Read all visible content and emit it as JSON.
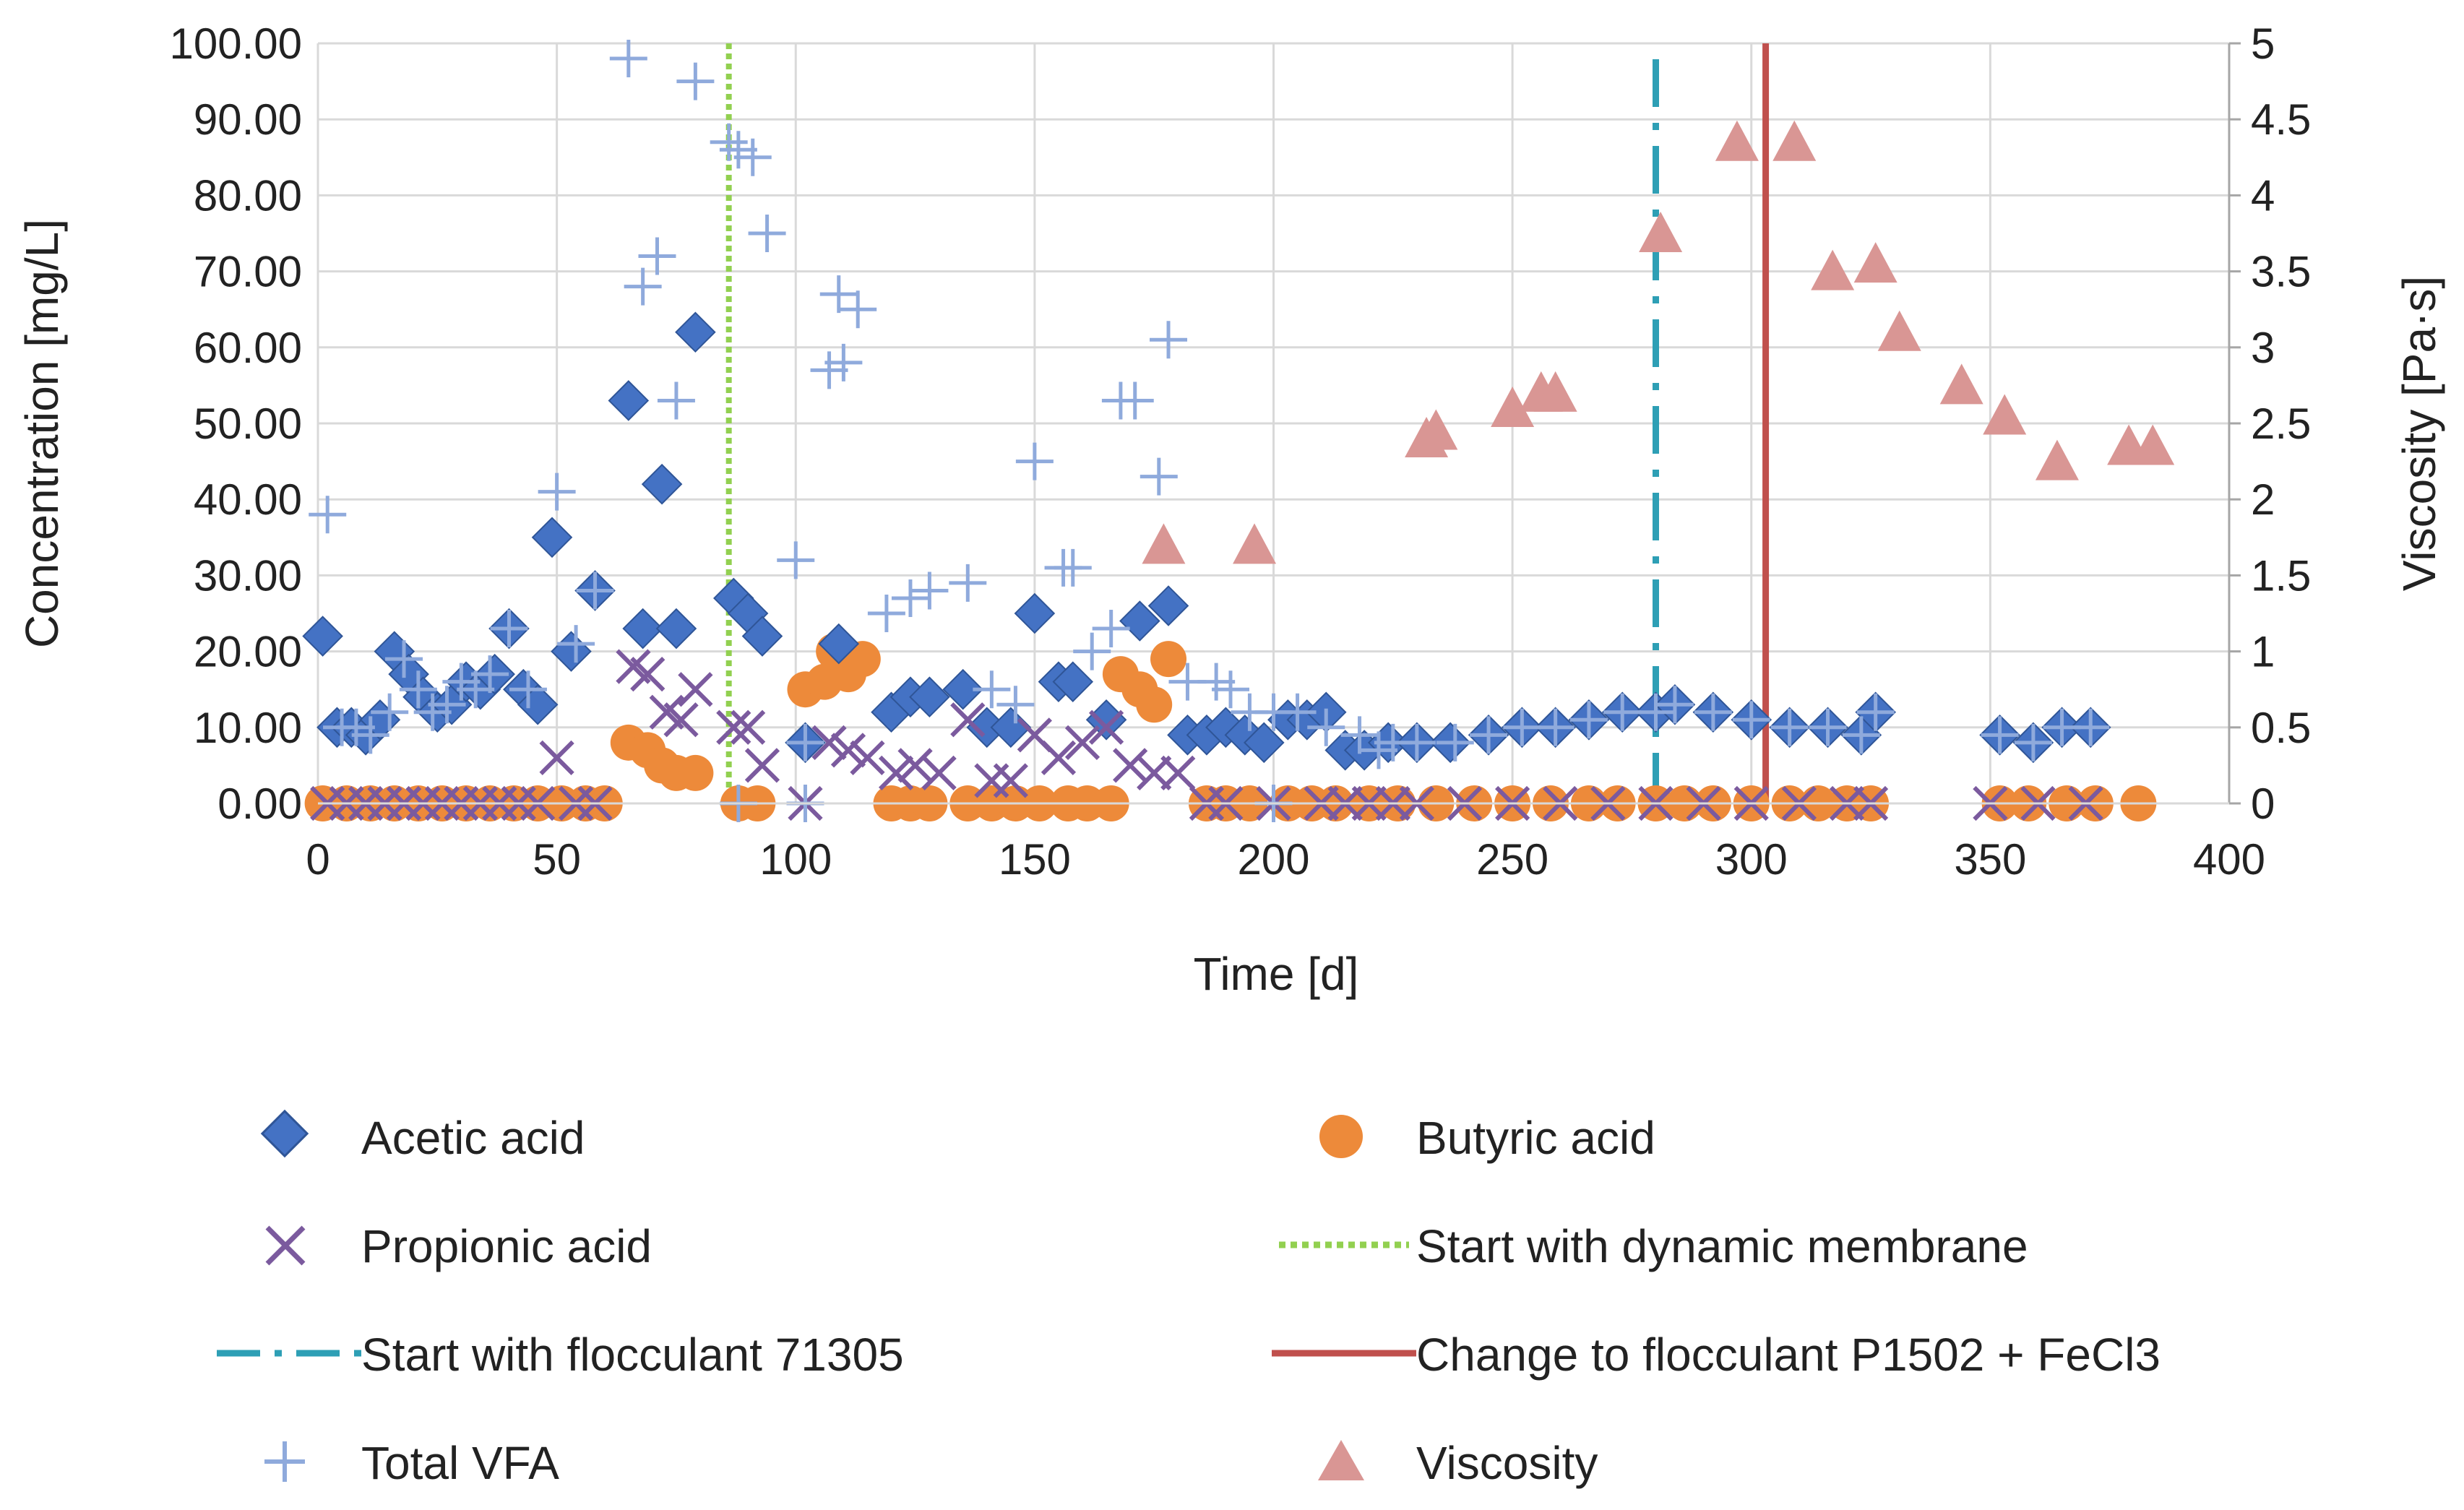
{
  "chart_data": {
    "type": "scatter",
    "xlabel": "Time [d]",
    "ylabel": "Concentration [mg/L]",
    "y2label": "Viscosity [Pa·s]",
    "xlim": [
      0,
      400
    ],
    "ylim": [
      0,
      100
    ],
    "y2lim": [
      0,
      5
    ],
    "x_ticks": [
      "0",
      "50",
      "100",
      "150",
      "200",
      "250",
      "300",
      "350",
      "400"
    ],
    "y_ticks": [
      "0.00",
      "10.00",
      "20.00",
      "30.00",
      "40.00",
      "50.00",
      "60.00",
      "70.00",
      "80.00",
      "90.00",
      "100.00"
    ],
    "y2_ticks": [
      "0",
      "0.5",
      "1",
      "1.5",
      "2",
      "2.5",
      "3",
      "3.5",
      "4",
      "4.5",
      "5"
    ],
    "grid": true,
    "legend_position": "bottom",
    "series": [
      {
        "name": "Acetic acid",
        "axis": "left",
        "marker": "diamond",
        "color": "#4472C4",
        "points": [
          [
            1,
            22
          ],
          [
            4,
            10
          ],
          [
            7,
            10
          ],
          [
            10,
            9
          ],
          [
            13,
            11
          ],
          [
            16,
            20
          ],
          [
            19,
            17
          ],
          [
            22,
            14
          ],
          [
            25,
            12
          ],
          [
            28,
            13
          ],
          [
            31,
            16
          ],
          [
            34,
            15
          ],
          [
            37,
            17
          ],
          [
            40,
            23
          ],
          [
            43,
            15
          ],
          [
            46,
            13
          ],
          [
            49,
            35
          ],
          [
            53,
            20
          ],
          [
            58,
            28
          ],
          [
            65,
            53
          ],
          [
            68,
            23
          ],
          [
            72,
            42
          ],
          [
            75,
            23
          ],
          [
            79,
            62
          ],
          [
            87,
            27
          ],
          [
            90,
            25
          ],
          [
            93,
            22
          ],
          [
            102,
            8
          ],
          [
            109,
            21
          ],
          [
            120,
            12
          ],
          [
            124,
            14
          ],
          [
            128,
            14
          ],
          [
            135,
            15
          ],
          [
            140,
            10
          ],
          [
            145,
            10
          ],
          [
            150,
            25
          ],
          [
            155,
            16
          ],
          [
            158,
            16
          ],
          [
            165,
            11
          ],
          [
            172,
            24
          ],
          [
            178,
            26
          ],
          [
            182,
            9
          ],
          [
            186,
            9
          ],
          [
            190,
            10
          ],
          [
            194,
            9
          ],
          [
            198,
            8
          ],
          [
            203,
            11
          ],
          [
            207,
            11
          ],
          [
            211,
            12
          ],
          [
            215,
            7
          ],
          [
            219,
            7
          ],
          [
            224,
            8
          ],
          [
            230,
            8
          ],
          [
            237,
            8
          ],
          [
            245,
            9
          ],
          [
            252,
            10
          ],
          [
            259,
            10
          ],
          [
            266,
            11
          ],
          [
            273,
            12
          ],
          [
            280,
            12
          ],
          [
            284,
            13
          ],
          [
            292,
            12
          ],
          [
            300,
            11
          ],
          [
            308,
            10
          ],
          [
            316,
            10
          ],
          [
            323,
            9
          ],
          [
            326,
            12
          ],
          [
            352,
            9
          ],
          [
            359,
            8
          ],
          [
            365,
            10
          ],
          [
            371,
            10
          ]
        ]
      },
      {
        "name": "Propionic acid",
        "axis": "left",
        "marker": "x",
        "color": "#7B5A9E",
        "points": [
          [
            2,
            0
          ],
          [
            6,
            0
          ],
          [
            10,
            0
          ],
          [
            14,
            0
          ],
          [
            18,
            0
          ],
          [
            22,
            0
          ],
          [
            26,
            0
          ],
          [
            30,
            0
          ],
          [
            34,
            0
          ],
          [
            38,
            0
          ],
          [
            42,
            0
          ],
          [
            46,
            0
          ],
          [
            50,
            6
          ],
          [
            54,
            0
          ],
          [
            58,
            0
          ],
          [
            66,
            18
          ],
          [
            69,
            17
          ],
          [
            73,
            12
          ],
          [
            76,
            11
          ],
          [
            79,
            15
          ],
          [
            87,
            10
          ],
          [
            90,
            10
          ],
          [
            93,
            5
          ],
          [
            102,
            0
          ],
          [
            107,
            8
          ],
          [
            111,
            7
          ],
          [
            115,
            6
          ],
          [
            121,
            4
          ],
          [
            125,
            5
          ],
          [
            130,
            4
          ],
          [
            136,
            11
          ],
          [
            141,
            3
          ],
          [
            145,
            3
          ],
          [
            150,
            9
          ],
          [
            155,
            6
          ],
          [
            160,
            8
          ],
          [
            165,
            10
          ],
          [
            170,
            5
          ],
          [
            175,
            4
          ],
          [
            180,
            4
          ],
          [
            186,
            0
          ],
          [
            190,
            0
          ],
          [
            200,
            0
          ],
          [
            210,
            0
          ],
          [
            215,
            0
          ],
          [
            220,
            0
          ],
          [
            225,
            0
          ],
          [
            230,
            0
          ],
          [
            240,
            0
          ],
          [
            250,
            0
          ],
          [
            260,
            0
          ],
          [
            270,
            0
          ],
          [
            280,
            0
          ],
          [
            290,
            0
          ],
          [
            300,
            0
          ],
          [
            310,
            0
          ],
          [
            320,
            0
          ],
          [
            325,
            0
          ],
          [
            350,
            0
          ],
          [
            360,
            0
          ],
          [
            370,
            0
          ]
        ]
      },
      {
        "name": "Total VFA",
        "axis": "left",
        "marker": "plus",
        "color": "#8FAADC",
        "points": [
          [
            2,
            38
          ],
          [
            5,
            10
          ],
          [
            8,
            10
          ],
          [
            11,
            9
          ],
          [
            15,
            12
          ],
          [
            18,
            19
          ],
          [
            21,
            15
          ],
          [
            24,
            12
          ],
          [
            27,
            13
          ],
          [
            30,
            16
          ],
          [
            33,
            15
          ],
          [
            36,
            17
          ],
          [
            40,
            23
          ],
          [
            44,
            15
          ],
          [
            50,
            41
          ],
          [
            54,
            21
          ],
          [
            58,
            28
          ],
          [
            65,
            98
          ],
          [
            68,
            68
          ],
          [
            71,
            72
          ],
          [
            75,
            53
          ],
          [
            79,
            95
          ],
          [
            86,
            87
          ],
          [
            88,
            86
          ],
          [
            91,
            85
          ],
          [
            94,
            75
          ],
          [
            102,
            8
          ],
          [
            100,
            32
          ],
          [
            107,
            57
          ],
          [
            109,
            67
          ],
          [
            110,
            58
          ],
          [
            113,
            65
          ],
          [
            119,
            25
          ],
          [
            124,
            27
          ],
          [
            128,
            28
          ],
          [
            136,
            29
          ],
          [
            141,
            15
          ],
          [
            146,
            13
          ],
          [
            150,
            45
          ],
          [
            156,
            31
          ],
          [
            158,
            31
          ],
          [
            162,
            20
          ],
          [
            166,
            23
          ],
          [
            168,
            53
          ],
          [
            171,
            53
          ],
          [
            176,
            43
          ],
          [
            178,
            61
          ],
          [
            182,
            16
          ],
          [
            188,
            16
          ],
          [
            191,
            15
          ],
          [
            195,
            12
          ],
          [
            200,
            12
          ],
          [
            205,
            12
          ],
          [
            211,
            10
          ],
          [
            218,
            9
          ],
          [
            222,
            7
          ],
          [
            225,
            8
          ],
          [
            230,
            8
          ],
          [
            238,
            8
          ],
          [
            245,
            9
          ],
          [
            252,
            10
          ],
          [
            259,
            10
          ],
          [
            266,
            11
          ],
          [
            273,
            12
          ],
          [
            280,
            12
          ],
          [
            284,
            13
          ],
          [
            292,
            12
          ],
          [
            300,
            11
          ],
          [
            308,
            10
          ],
          [
            316,
            10
          ],
          [
            323,
            9
          ],
          [
            326,
            12
          ],
          [
            352,
            9
          ],
          [
            359,
            8
          ],
          [
            365,
            10
          ],
          [
            371,
            10
          ],
          [
            200,
            0
          ],
          [
            102,
            0
          ],
          [
            88,
            0
          ]
        ]
      },
      {
        "name": "Butyric acid",
        "axis": "left",
        "marker": "circle",
        "color": "#ED8A3A",
        "points": [
          [
            1,
            0
          ],
          [
            6,
            0
          ],
          [
            11,
            0
          ],
          [
            16,
            0
          ],
          [
            21,
            0
          ],
          [
            26,
            0
          ],
          [
            31,
            0
          ],
          [
            36,
            0
          ],
          [
            41,
            0
          ],
          [
            46,
            0
          ],
          [
            51,
            0
          ],
          [
            56,
            0
          ],
          [
            60,
            0
          ],
          [
            65,
            8
          ],
          [
            69,
            7
          ],
          [
            72,
            5
          ],
          [
            75,
            4
          ],
          [
            79,
            4
          ],
          [
            88,
            0
          ],
          [
            92,
            0
          ],
          [
            102,
            15
          ],
          [
            106,
            16
          ],
          [
            108,
            20
          ],
          [
            111,
            17
          ],
          [
            114,
            19
          ],
          [
            120,
            0
          ],
          [
            124,
            0
          ],
          [
            128,
            0
          ],
          [
            136,
            0
          ],
          [
            141,
            0
          ],
          [
            146,
            0
          ],
          [
            151,
            0
          ],
          [
            157,
            0
          ],
          [
            161,
            0
          ],
          [
            166,
            0
          ],
          [
            168,
            17
          ],
          [
            172,
            15
          ],
          [
            175,
            13
          ],
          [
            178,
            19
          ],
          [
            186,
            0
          ],
          [
            190,
            0
          ],
          [
            195,
            0
          ],
          [
            203,
            0
          ],
          [
            208,
            0
          ],
          [
            213,
            0
          ],
          [
            220,
            0
          ],
          [
            226,
            0
          ],
          [
            234,
            0
          ],
          [
            242,
            0
          ],
          [
            250,
            0
          ],
          [
            258,
            0
          ],
          [
            266,
            0
          ],
          [
            272,
            0
          ],
          [
            280,
            0
          ],
          [
            286,
            0
          ],
          [
            292,
            0
          ],
          [
            300,
            0
          ],
          [
            308,
            0
          ],
          [
            314,
            0
          ],
          [
            320,
            0
          ],
          [
            325,
            0
          ],
          [
            352,
            0
          ],
          [
            358,
            0
          ],
          [
            366,
            0
          ],
          [
            372,
            0
          ],
          [
            381,
            0
          ]
        ]
      },
      {
        "name": "Viscosity",
        "axis": "right",
        "marker": "triangle",
        "color": "#D99694",
        "points": [
          [
            177,
            1.7
          ],
          [
            196,
            1.7
          ],
          [
            232,
            2.4
          ],
          [
            234,
            2.45
          ],
          [
            250,
            2.6
          ],
          [
            256,
            2.7
          ],
          [
            259,
            2.7
          ],
          [
            281,
            3.75
          ],
          [
            297,
            4.35
          ],
          [
            309,
            4.35
          ],
          [
            317,
            3.5
          ],
          [
            326,
            3.55
          ],
          [
            331,
            3.1
          ],
          [
            344,
            2.75
          ],
          [
            353,
            2.55
          ],
          [
            364,
            2.25
          ],
          [
            379,
            2.35
          ],
          [
            384,
            2.35
          ]
        ]
      }
    ],
    "vertical_lines": [
      {
        "name": "Start with dynamic membrane",
        "x": 86,
        "style": "dotted",
        "color": "#92D050"
      },
      {
        "name": "Start with flocculant 71305",
        "x": 280,
        "style": "dashdot",
        "color": "#2E9FB5"
      },
      {
        "name": "Change to flocculant P1502 + FeCl3",
        "x": 303,
        "style": "solid",
        "color": "#C0504D"
      }
    ]
  },
  "legend": {
    "acetic": "Acetic acid",
    "butyric": "Butyric acid",
    "propionic": "Propionic acid",
    "membrane": "Start with dynamic membrane",
    "flocc71305": "Start with flocculant 71305",
    "p1502": "Change to flocculant P1502 + FeCl3",
    "total": "Total VFA",
    "viscosity": "Viscosity"
  }
}
